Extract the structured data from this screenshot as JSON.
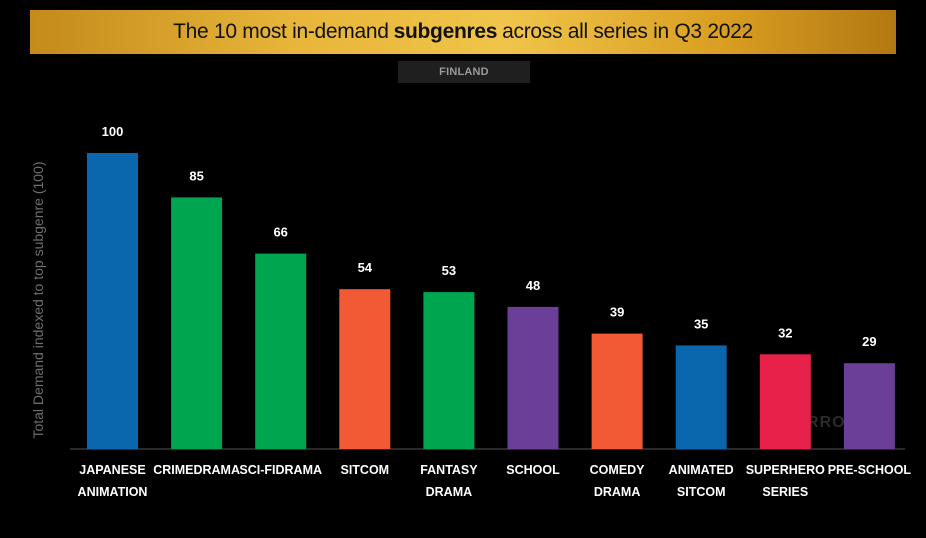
{
  "header": {
    "title_pre": "The 10 most in-demand",
    "title_bold": "subgenres",
    "title_post": "across all series in Q3 2022",
    "region": "FINLAND"
  },
  "watermark": {
    "text": "PARROT"
  },
  "chart_data": {
    "type": "bar",
    "title": "The 10 most in-demand subgenres across all series in Q3 2022",
    "subtitle": "FINLAND",
    "ylabel": "Total Demand indexed to top subgenre (100)",
    "xlabel": "",
    "ylim": [
      0,
      100
    ],
    "grid": false,
    "categories": [
      [
        "JAPANESE",
        "ANIMATION"
      ],
      [
        "CRIMEDRAMA"
      ],
      [
        "SCI-FIDRAMA"
      ],
      [
        "SITCOM"
      ],
      [
        "FANTASY",
        "DRAMA"
      ],
      [
        "SCHOOL"
      ],
      [
        "COMEDY",
        "DRAMA"
      ],
      [
        "ANIMATED",
        "SITCOM"
      ],
      [
        "SUPERHERO",
        "SERIES"
      ],
      [
        "PRE-SCHOOL"
      ]
    ],
    "values": [
      100,
      85,
      66,
      54,
      53,
      48,
      39,
      35,
      32,
      29
    ],
    "colors": [
      "#0a66ad",
      "#00a550",
      "#00a550",
      "#f15a35",
      "#00a550",
      "#6b3f97",
      "#f15a35",
      "#0a66ad",
      "#e8214a",
      "#6b3f97"
    ]
  }
}
